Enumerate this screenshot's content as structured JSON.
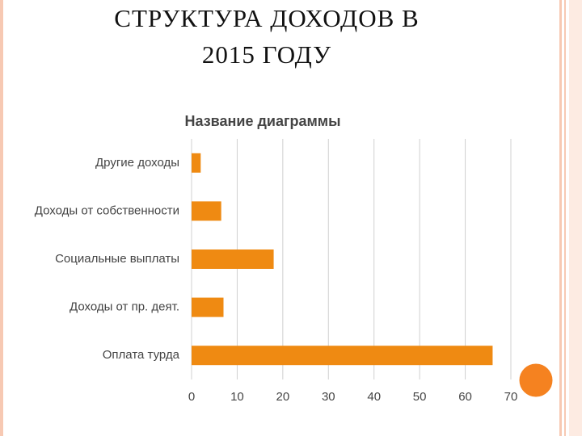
{
  "slide_title": [
    "СТРУКТУРА ДОХОДОВ В",
    "2015 ГОДУ"
  ],
  "chart_data": {
    "type": "bar",
    "orientation": "horizontal",
    "title": "Название диаграммы",
    "categories": [
      "Другие доходы",
      "Доходы от собственности",
      "Социальные выплаты",
      "Доходы от пр. деят.",
      "Оплата турда"
    ],
    "values": [
      2,
      6.5,
      18,
      7,
      66
    ],
    "color": "#ef8a12",
    "xlim": [
      0,
      70
    ],
    "xticks": [
      0,
      10,
      20,
      30,
      40,
      50,
      60,
      70
    ],
    "grid": true
  }
}
